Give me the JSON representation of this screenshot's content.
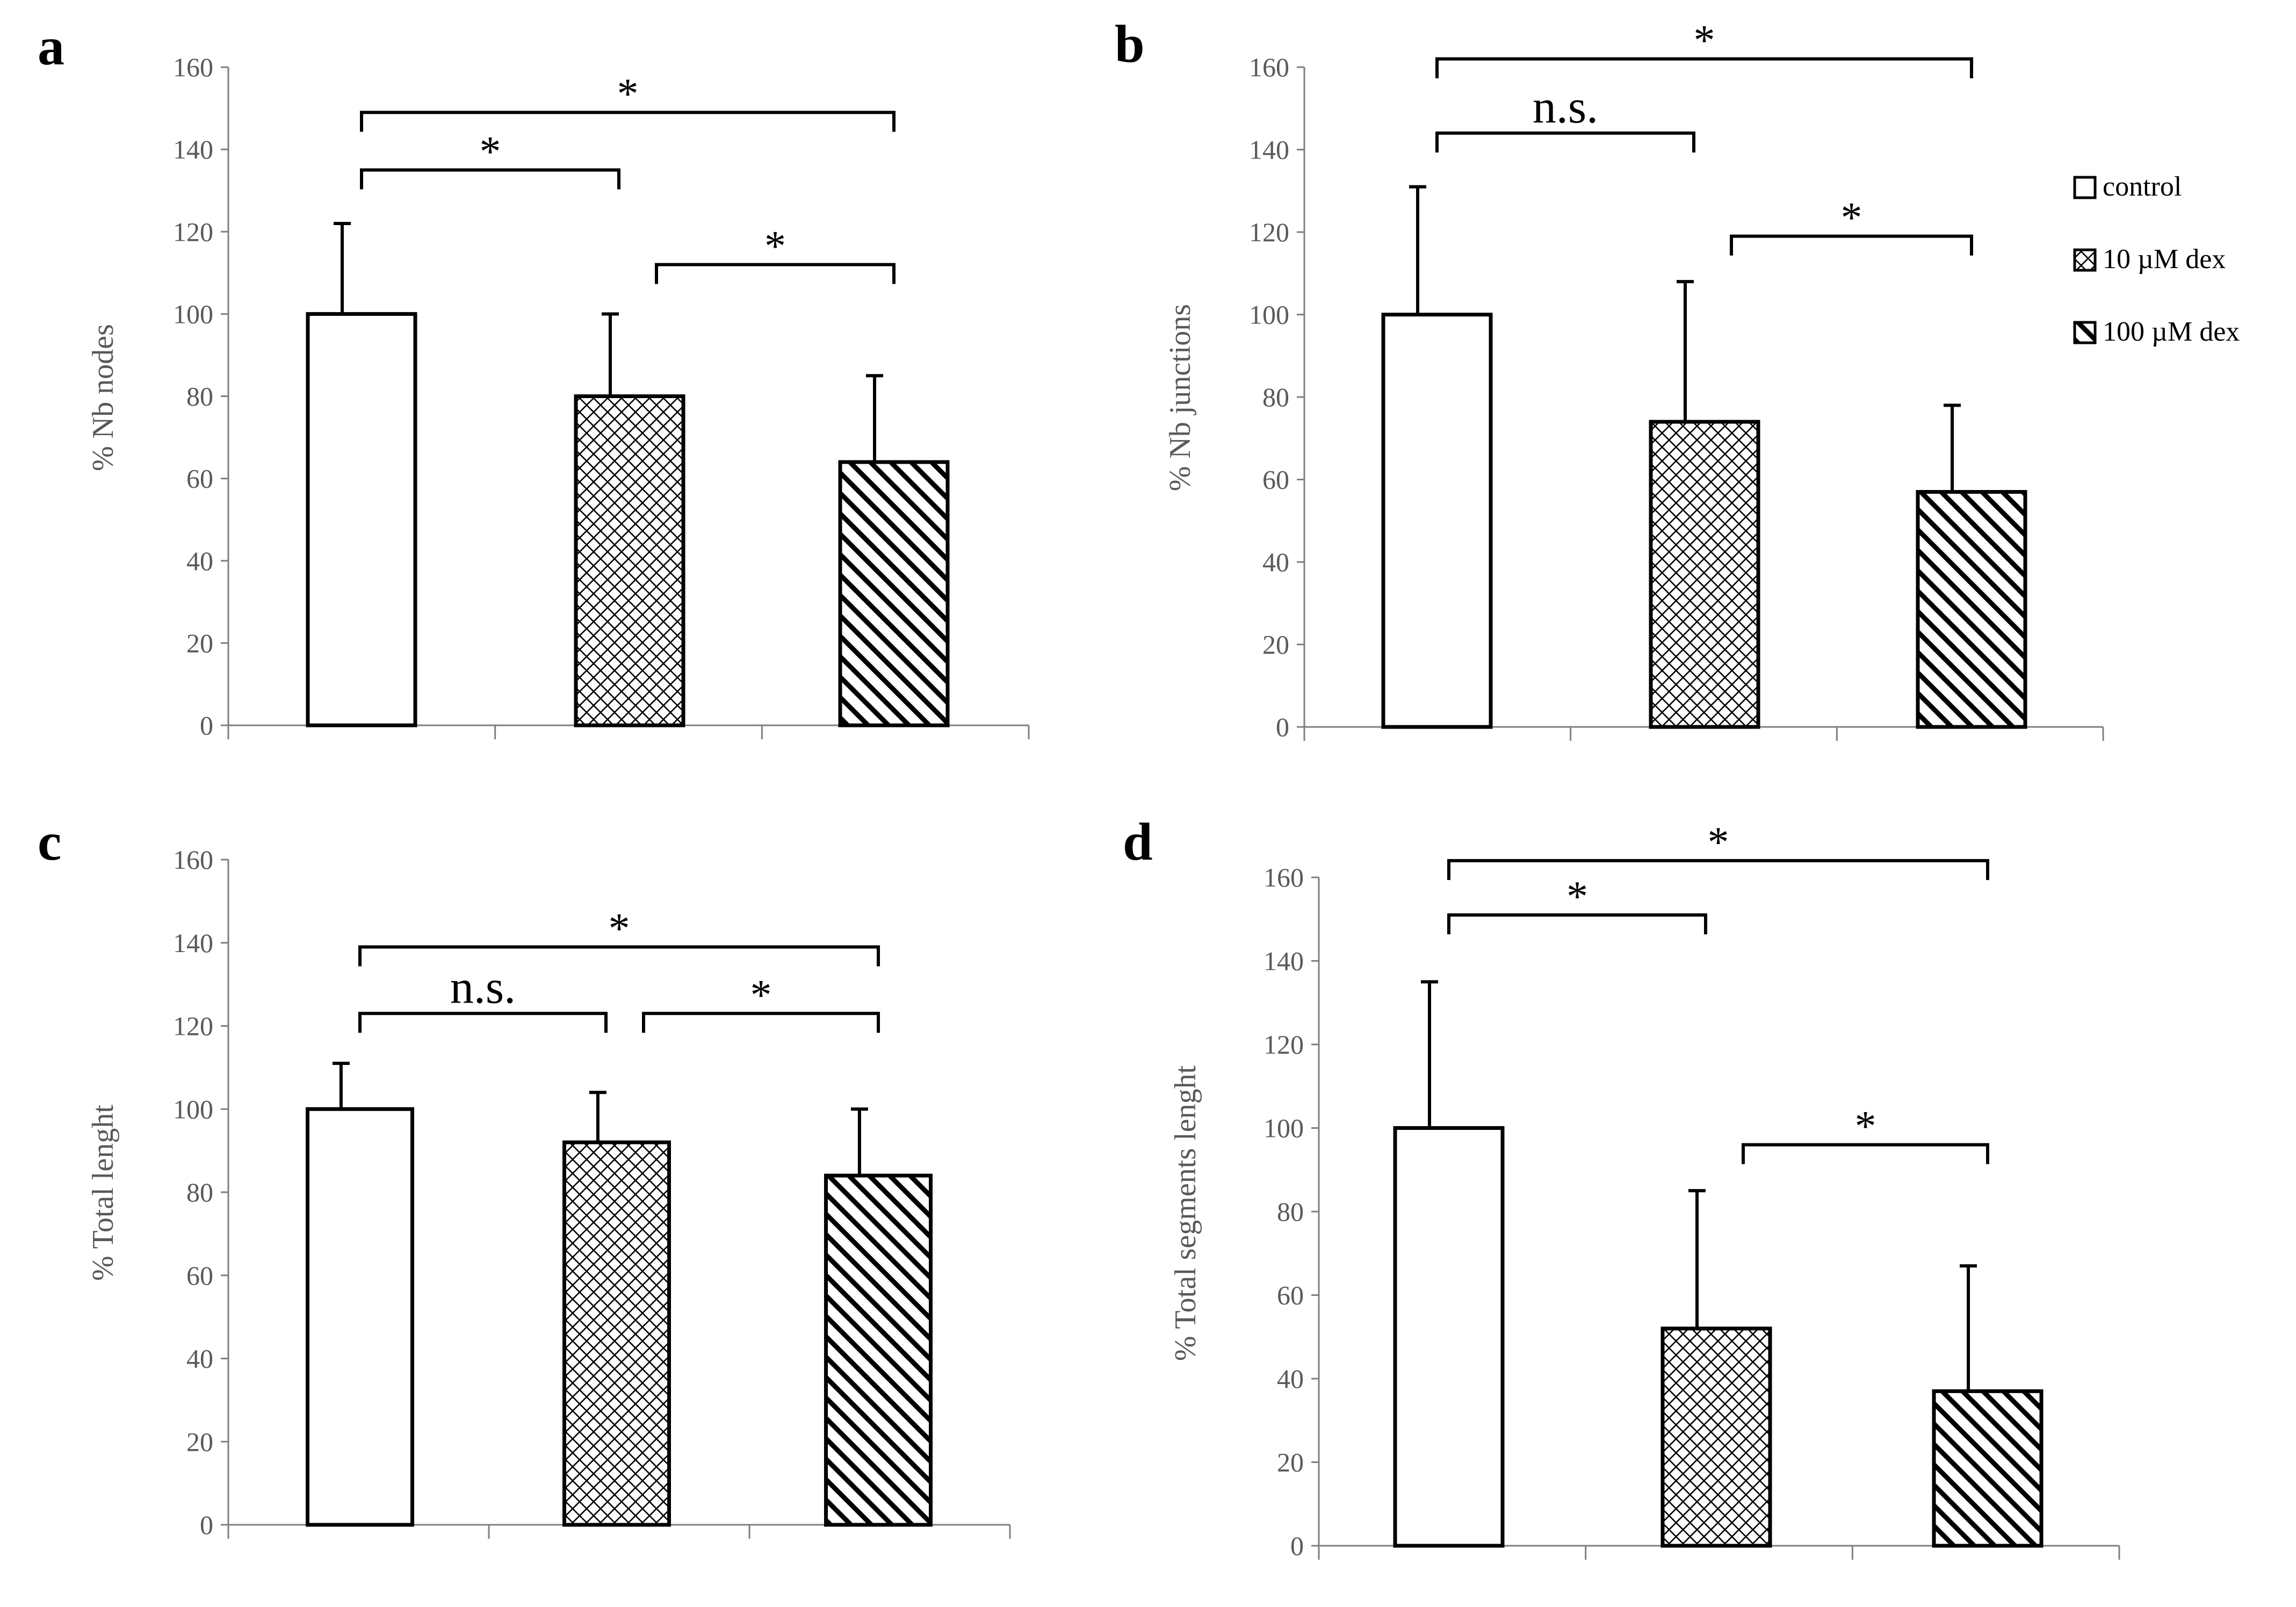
{
  "figure": {
    "legend": [
      {
        "label": "control",
        "pattern": "none"
      },
      {
        "label": "10 µM dex",
        "pattern": "crosshatch"
      },
      {
        "label": "100 µM dex",
        "pattern": "diagonal"
      }
    ]
  },
  "chart_data": [
    {
      "panel": "a",
      "type": "bar",
      "title": "",
      "xlabel": "",
      "ylabel": "% Nb nodes",
      "ylim": [
        0,
        160
      ],
      "yticks": [
        0,
        20,
        40,
        60,
        80,
        100,
        120,
        140,
        160
      ],
      "categories": [
        "control",
        "10 µM dex",
        "100 µM dex"
      ],
      "values": [
        100,
        80,
        64
      ],
      "errors": [
        22,
        20,
        21
      ],
      "significance": [
        {
          "from": 0,
          "to": 1,
          "label": "*",
          "level": 135
        },
        {
          "from": 0,
          "to": 2,
          "label": "*",
          "level": 149
        },
        {
          "from": 1,
          "to": 2,
          "label": "*",
          "level": 112
        }
      ]
    },
    {
      "panel": "b",
      "type": "bar",
      "title": "",
      "xlabel": "",
      "ylabel": "% Nb junctions",
      "ylim": [
        0,
        160
      ],
      "yticks": [
        0,
        20,
        40,
        60,
        80,
        100,
        120,
        140,
        160
      ],
      "categories": [
        "control",
        "10 µM dex",
        "100 µM dex"
      ],
      "values": [
        100,
        74,
        57
      ],
      "errors": [
        31,
        34,
        21
      ],
      "significance": [
        {
          "from": 0,
          "to": 1,
          "label": "n.s.",
          "level": 144
        },
        {
          "from": 0,
          "to": 2,
          "label": "*",
          "level": 162
        },
        {
          "from": 1,
          "to": 2,
          "label": "*",
          "level": 119
        }
      ]
    },
    {
      "panel": "c",
      "type": "bar",
      "title": "",
      "xlabel": "",
      "ylabel": "% Total lenght",
      "ylim": [
        0,
        160
      ],
      "yticks": [
        0,
        20,
        40,
        60,
        80,
        100,
        120,
        140,
        160
      ],
      "categories": [
        "control",
        "10 µM dex",
        "100 µM dex"
      ],
      "values": [
        100,
        92,
        84
      ],
      "errors": [
        11,
        12,
        16
      ],
      "significance": [
        {
          "from": 0,
          "to": 1,
          "label": "n.s.",
          "level": 123
        },
        {
          "from": 0,
          "to": 2,
          "label": "*",
          "level": 139
        },
        {
          "from": 1,
          "to": 2,
          "label": "*",
          "level": 123
        }
      ]
    },
    {
      "panel": "d",
      "type": "bar",
      "title": "",
      "xlabel": "",
      "ylabel": "% Total segments lenght",
      "ylim": [
        0,
        160
      ],
      "yticks": [
        0,
        20,
        40,
        60,
        80,
        100,
        120,
        140,
        160
      ],
      "categories": [
        "control",
        "10 µM dex",
        "100 µM dex"
      ],
      "values": [
        100,
        52,
        37
      ],
      "errors": [
        35,
        33,
        30
      ],
      "significance": [
        {
          "from": 0,
          "to": 1,
          "label": "*",
          "level": 151
        },
        {
          "from": 0,
          "to": 2,
          "label": "*",
          "level": 164
        },
        {
          "from": 1,
          "to": 2,
          "label": "*",
          "level": 96
        }
      ]
    }
  ]
}
